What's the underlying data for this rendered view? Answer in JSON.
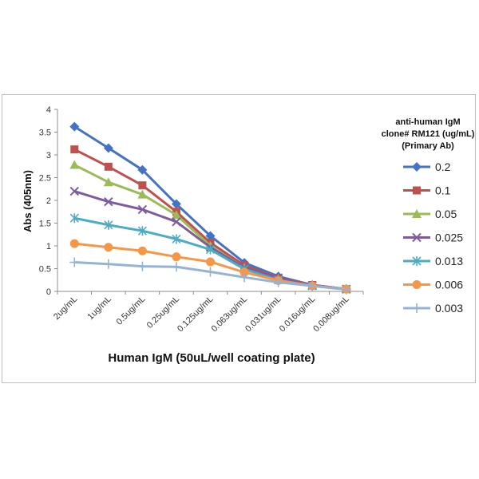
{
  "chart_data": {
    "type": "line",
    "xlabel": "Human IgM (50uL/well coating plate)",
    "ylabel": "Abs (405nm)",
    "categories": [
      "2ug/mL",
      "1ug/mL",
      "0.5ug/mL",
      "0.25ug/mL",
      "0.125ug/mL",
      "0.063ug/mL",
      "0.031ug/mL",
      "0.016ug/mL",
      "0.008ug/mL"
    ],
    "ylim": [
      0,
      4
    ],
    "yticks": [
      "0",
      "0.5",
      "1",
      "1.5",
      "2",
      "2.5",
      "3",
      "3.5",
      "4"
    ],
    "grid": false,
    "legend_position": "right",
    "legend_title": [
      "anti-human IgM",
      "clone# RM121 (ug/mL)",
      "(Primary Ab)"
    ],
    "series": [
      {
        "name": "0.2",
        "color": "#4472C4",
        "marker": "diamond",
        "values": [
          3.62,
          3.15,
          2.67,
          1.92,
          1.22,
          0.63,
          0.33,
          0.14,
          0.05
        ]
      },
      {
        "name": "0.1",
        "color": "#C0504D",
        "marker": "square",
        "values": [
          3.12,
          2.74,
          2.33,
          1.75,
          1.07,
          0.57,
          0.3,
          0.14,
          0.05
        ]
      },
      {
        "name": "0.05",
        "color": "#9BBB59",
        "marker": "triangle",
        "values": [
          2.78,
          2.4,
          2.13,
          1.68,
          1.0,
          0.52,
          0.28,
          0.13,
          0.05
        ]
      },
      {
        "name": "0.025",
        "color": "#7E5C9E",
        "marker": "x",
        "values": [
          2.2,
          1.97,
          1.8,
          1.53,
          0.97,
          0.52,
          0.29,
          0.13,
          0.05
        ]
      },
      {
        "name": "0.013",
        "color": "#4BACC6",
        "marker": "star",
        "values": [
          1.61,
          1.46,
          1.33,
          1.15,
          0.92,
          0.49,
          0.25,
          0.12,
          0.05
        ]
      },
      {
        "name": "0.006",
        "color": "#F79646",
        "marker": "circle",
        "values": [
          1.05,
          0.97,
          0.89,
          0.76,
          0.65,
          0.42,
          0.24,
          0.12,
          0.05
        ]
      },
      {
        "name": "0.003",
        "color": "#95B3D7",
        "marker": "plus",
        "values": [
          0.64,
          0.6,
          0.55,
          0.54,
          0.43,
          0.31,
          0.2,
          0.12,
          0.04
        ]
      }
    ]
  }
}
